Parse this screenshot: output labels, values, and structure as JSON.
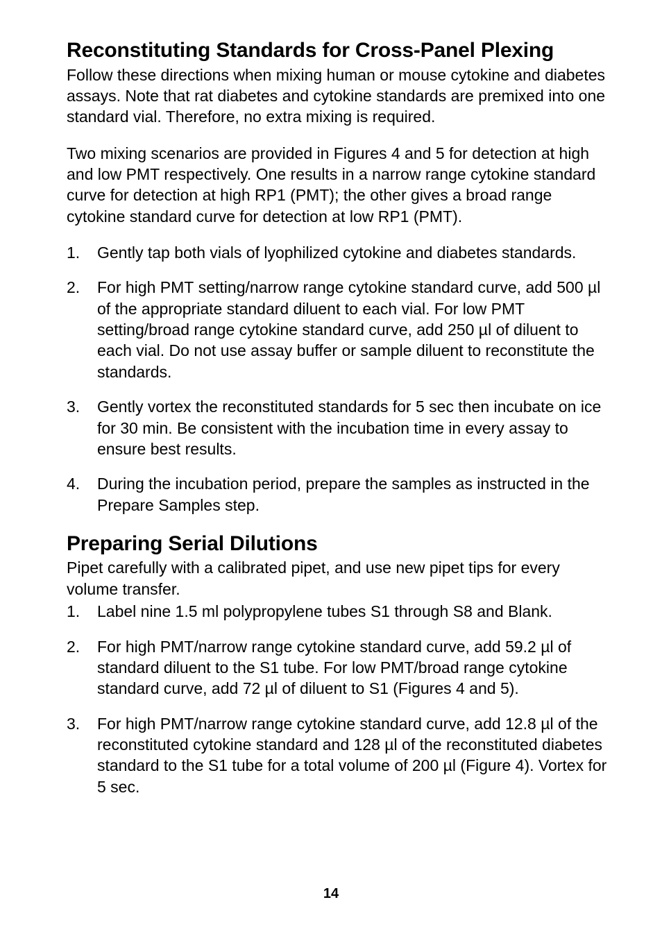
{
  "page_number": "14",
  "section1": {
    "title": "Reconstituting Standards for Cross-Panel Plexing",
    "para1": "Follow these directions when mixing human or mouse cytokine and diabetes assays. Note that rat diabetes and cytokine standards are premixed into one standard vial. Therefore, no extra mixing is required.",
    "para2": "Two mixing scenarios are provided in Figures 4 and 5 for detection at high and low PMT respectively. One results in a narrow range cytokine standard curve for detection at high RP1 (PMT); the other gives a broad range cytokine standard curve for detection at low RP1 (PMT).",
    "items": [
      {
        "num": "1.",
        "runs": [
          {
            "t": "Gently tap both vials of lyophilized cytokine and diabetes standards.",
            "b": false
          }
        ]
      },
      {
        "num": "2.",
        "runs": [
          {
            "t": "For high PMT",
            "b": true
          },
          {
            "t": " setting/narrow range cytokine standard curve, add ",
            "b": false
          },
          {
            "t": "500 µl",
            "b": true
          },
          {
            "t": " of the appropriate standard diluent to each vial. ",
            "b": false
          },
          {
            "t": "For low PMT",
            "b": true
          },
          {
            "t": " setting/broad range cytokine standard curve, add ",
            "b": false
          },
          {
            "t": "250 µl",
            "b": true
          },
          {
            "t": " of diluent to each vial. Do not use assay buffer or sample diluent to reconstitute the standards.",
            "b": false
          }
        ]
      },
      {
        "num": "3.",
        "runs": [
          {
            "t": "Gently vortex",
            "b": true
          },
          {
            "t": " the reconstituted standards for ",
            "b": false
          },
          {
            "t": "5 sec",
            "b": true
          },
          {
            "t": " then incubate ",
            "b": false
          },
          {
            "t": "on ice for 30 min",
            "b": true
          },
          {
            "t": ". Be consistent with the incubation time in every assay to ensure best results.",
            "b": false
          }
        ]
      },
      {
        "num": "4.",
        "runs": [
          {
            "t": "During the incubation period, prepare the samples as instructed in the Prepare Samples step.",
            "b": false
          }
        ]
      }
    ]
  },
  "section2": {
    "title": "Preparing Serial Dilutions",
    "para1": "Pipet carefully with a calibrated pipet, and use new pipet tips for every volume transfer.",
    "items": [
      {
        "num": "1.",
        "runs": [
          {
            "t": "Label nine 1.5 ml polypropylene tubes S1 through S8 and Blank.",
            "b": false
          }
        ]
      },
      {
        "num": "2.",
        "runs": [
          {
            "t": "For high PMT",
            "b": true
          },
          {
            "t": "/narrow range cytokine standard curve, add ",
            "b": false
          },
          {
            "t": "59.2 µl",
            "b": true
          },
          {
            "t": " of standard diluent to the S1 tube. ",
            "b": false
          },
          {
            "t": "For low PMT",
            "b": true
          },
          {
            "t": "/broad range cytokine standard curve, add ",
            "b": false
          },
          {
            "t": "72 µl",
            "b": true
          },
          {
            "t": " of diluent to S1 (Figures 4 and 5).",
            "b": false
          }
        ]
      },
      {
        "num": "3.",
        "runs": [
          {
            "t": "For high PMT",
            "b": true
          },
          {
            "t": "/narrow range cytokine standard curve, add ",
            "b": false
          },
          {
            "t": "12.8 µl",
            "b": true
          },
          {
            "t": " of the reconstituted cytokine standard and ",
            "b": false
          },
          {
            "t": "128 µl",
            "b": true
          },
          {
            "t": " of the reconstituted diabetes standard to the S1 tube for a total volume of 200 µl (Figure 4). ",
            "b": false
          },
          {
            "t": "Vortex",
            "b": true
          },
          {
            "t": " for ",
            "b": false
          },
          {
            "t": "5 sec",
            "b": true
          },
          {
            "t": ".",
            "b": false
          }
        ]
      }
    ]
  }
}
